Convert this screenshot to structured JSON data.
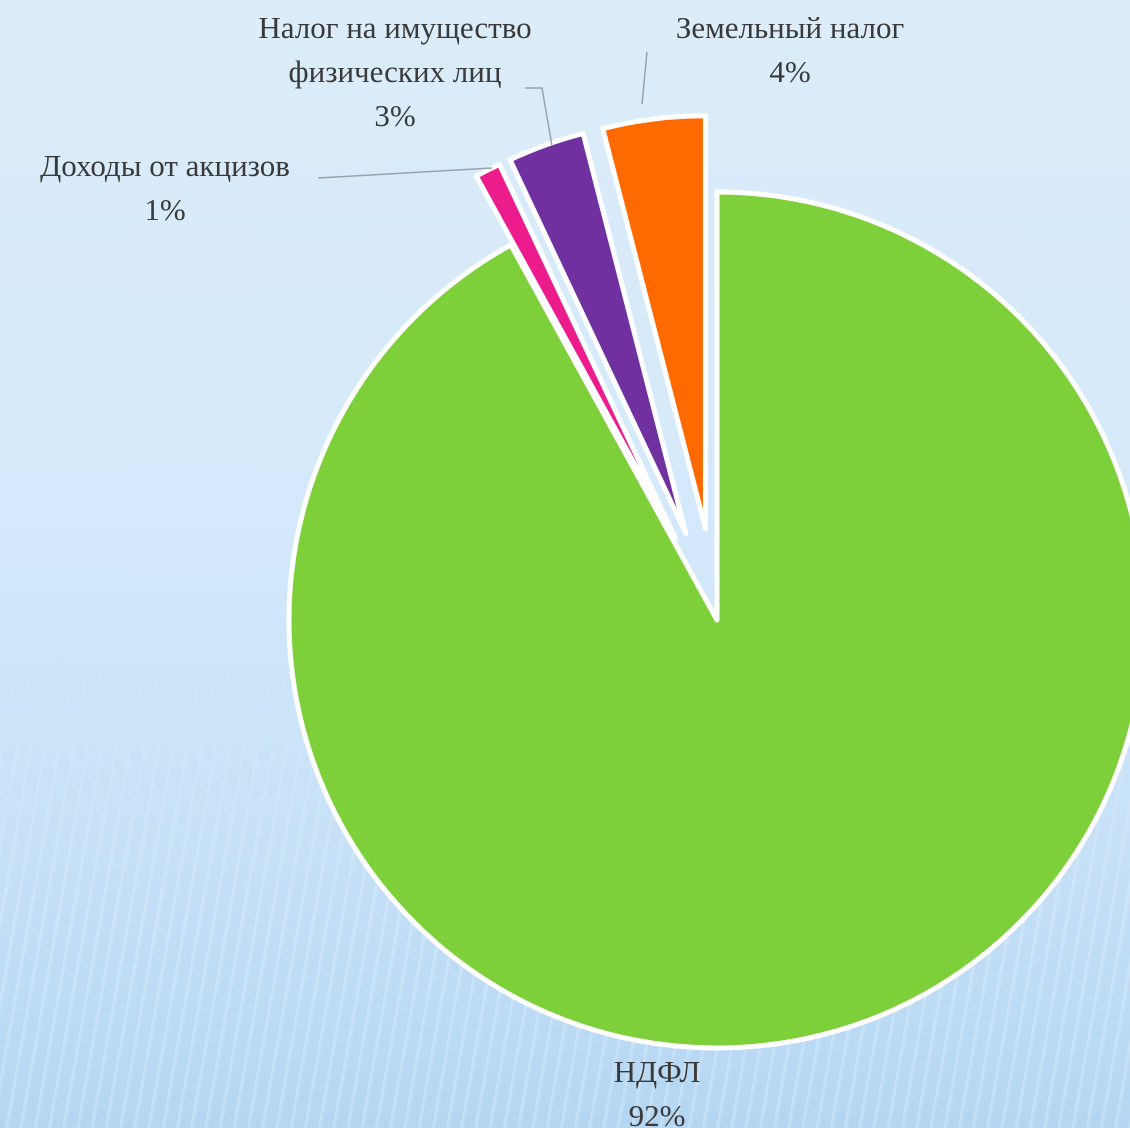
{
  "chart_data": {
    "type": "pie",
    "categories": [
      "НДФЛ",
      "Доходы от акцизов",
      "Налог на имущество физических лиц",
      "Земельный налог"
    ],
    "values": [
      92,
      1,
      3,
      4
    ],
    "labels": [
      [
        "НДФЛ",
        "92%"
      ],
      [
        "Доходы от акцизов",
        "1%"
      ],
      [
        "Налог на имущество",
        "физических лиц",
        "3%"
      ],
      [
        "Земельный налог",
        "4%"
      ]
    ],
    "colors": [
      "#7ed03b",
      "#ec1c8c",
      "#7030a0",
      "#ff6a00"
    ],
    "legend": "none"
  }
}
